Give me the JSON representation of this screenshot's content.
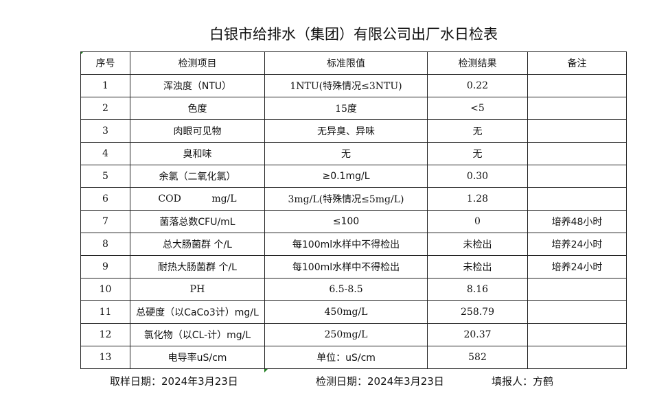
{
  "title": "白银市给排水（集团）有限公司出厂水日检表",
  "headers": [
    "序号",
    "检测项目",
    "标准限值",
    "检测结果",
    "备注"
  ],
  "rows": [
    [
      "1",
      "浑浊度（NTU）",
      "1NTU(特殊情况≤3NTU)",
      "0.22",
      ""
    ],
    [
      "2",
      "色度",
      "15度",
      "<5",
      ""
    ],
    [
      "3",
      "肉眼可见物",
      "无异臭、异味",
      "无",
      ""
    ],
    [
      "4",
      "臭和味",
      "无",
      "无",
      ""
    ],
    [
      "5",
      "余氯（二氧化氯）",
      "≥0.1mg/L",
      "0.30",
      ""
    ],
    [
      "6",
      "COD          mg/L",
      "3mg/L(特殊情况≤5mg/L)",
      "1.28",
      ""
    ],
    [
      "7",
      "菌落总数CFU/mL",
      "≤100",
      "0",
      "培养48小时"
    ],
    [
      "8",
      "总大肠菌群 个/L",
      "每100ml水样中不得检出",
      "未检出",
      "培养24小时"
    ],
    [
      "9",
      "耐热大肠菌群 个/L",
      "每100ml水样中不得检出",
      "未检出",
      "培养24小时"
    ],
    [
      "10",
      "PH",
      "6.5-8.5",
      "8.16",
      ""
    ],
    [
      "11",
      "总硬度（以CaCo3计）mg/L",
      "450mg/L",
      "258.79",
      ""
    ],
    [
      "12",
      "氯化物（以CL-计）mg/L",
      "250mg/L",
      "20.37",
      ""
    ],
    [
      "13",
      "电导率uS/cm",
      "单位：uS/cm",
      "582",
      ""
    ]
  ],
  "footer": {
    "sampling_date": "取样日期：2024年3月23日",
    "test_date": "检测日期：2024年3月23日",
    "reporter": "填报人：方鹤"
  }
}
